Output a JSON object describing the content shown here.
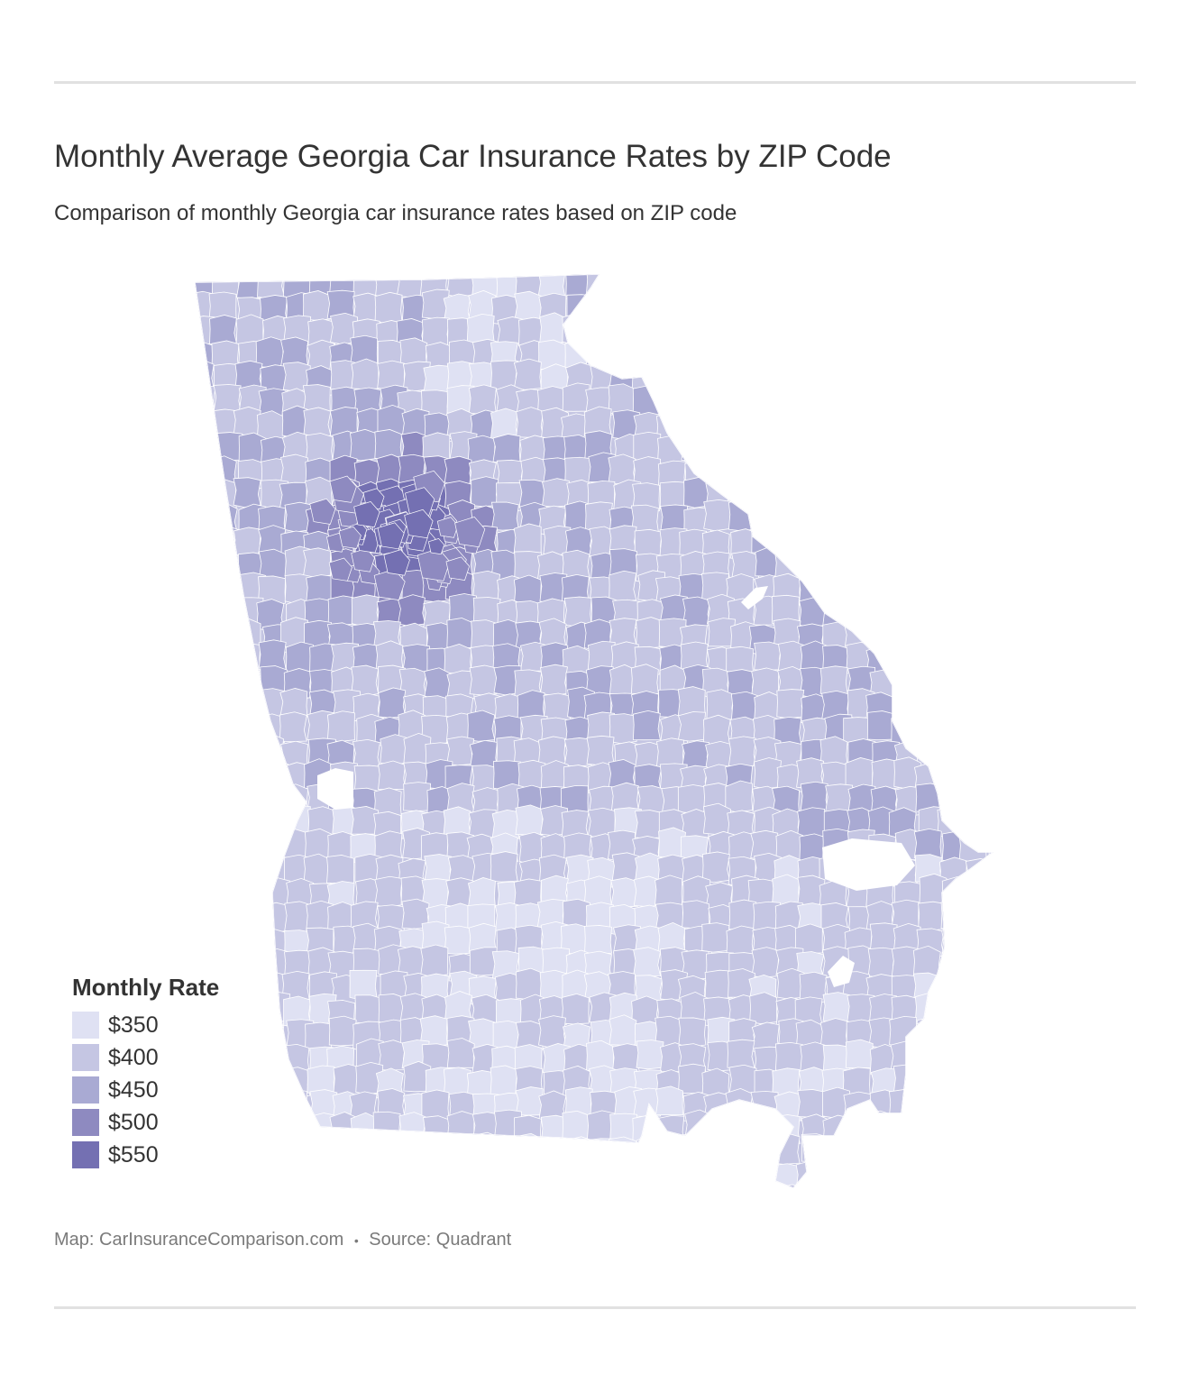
{
  "header": {
    "title": "Monthly Average Georgia Car Insurance Rates by ZIP Code",
    "subtitle": "Comparison of monthly Georgia car insurance rates based on ZIP code"
  },
  "legend": {
    "title": "Monthly Rate",
    "items": [
      {
        "label": "$350",
        "color": "#dfe1f3"
      },
      {
        "label": "$400",
        "color": "#c5c6e3"
      },
      {
        "label": "$450",
        "color": "#a9aad3"
      },
      {
        "label": "$500",
        "color": "#8e8ac0"
      },
      {
        "label": "$550",
        "color": "#7470b2"
      }
    ]
  },
  "footer": {
    "map_credit": "Map: CarInsuranceComparison.com",
    "separator": "•",
    "source": "Source: Quadrant"
  },
  "colors": {
    "border_line": "#ffffff",
    "rule": "#e1e1e1",
    "text": "#333333",
    "muted_text": "#7a7a7a"
  }
}
